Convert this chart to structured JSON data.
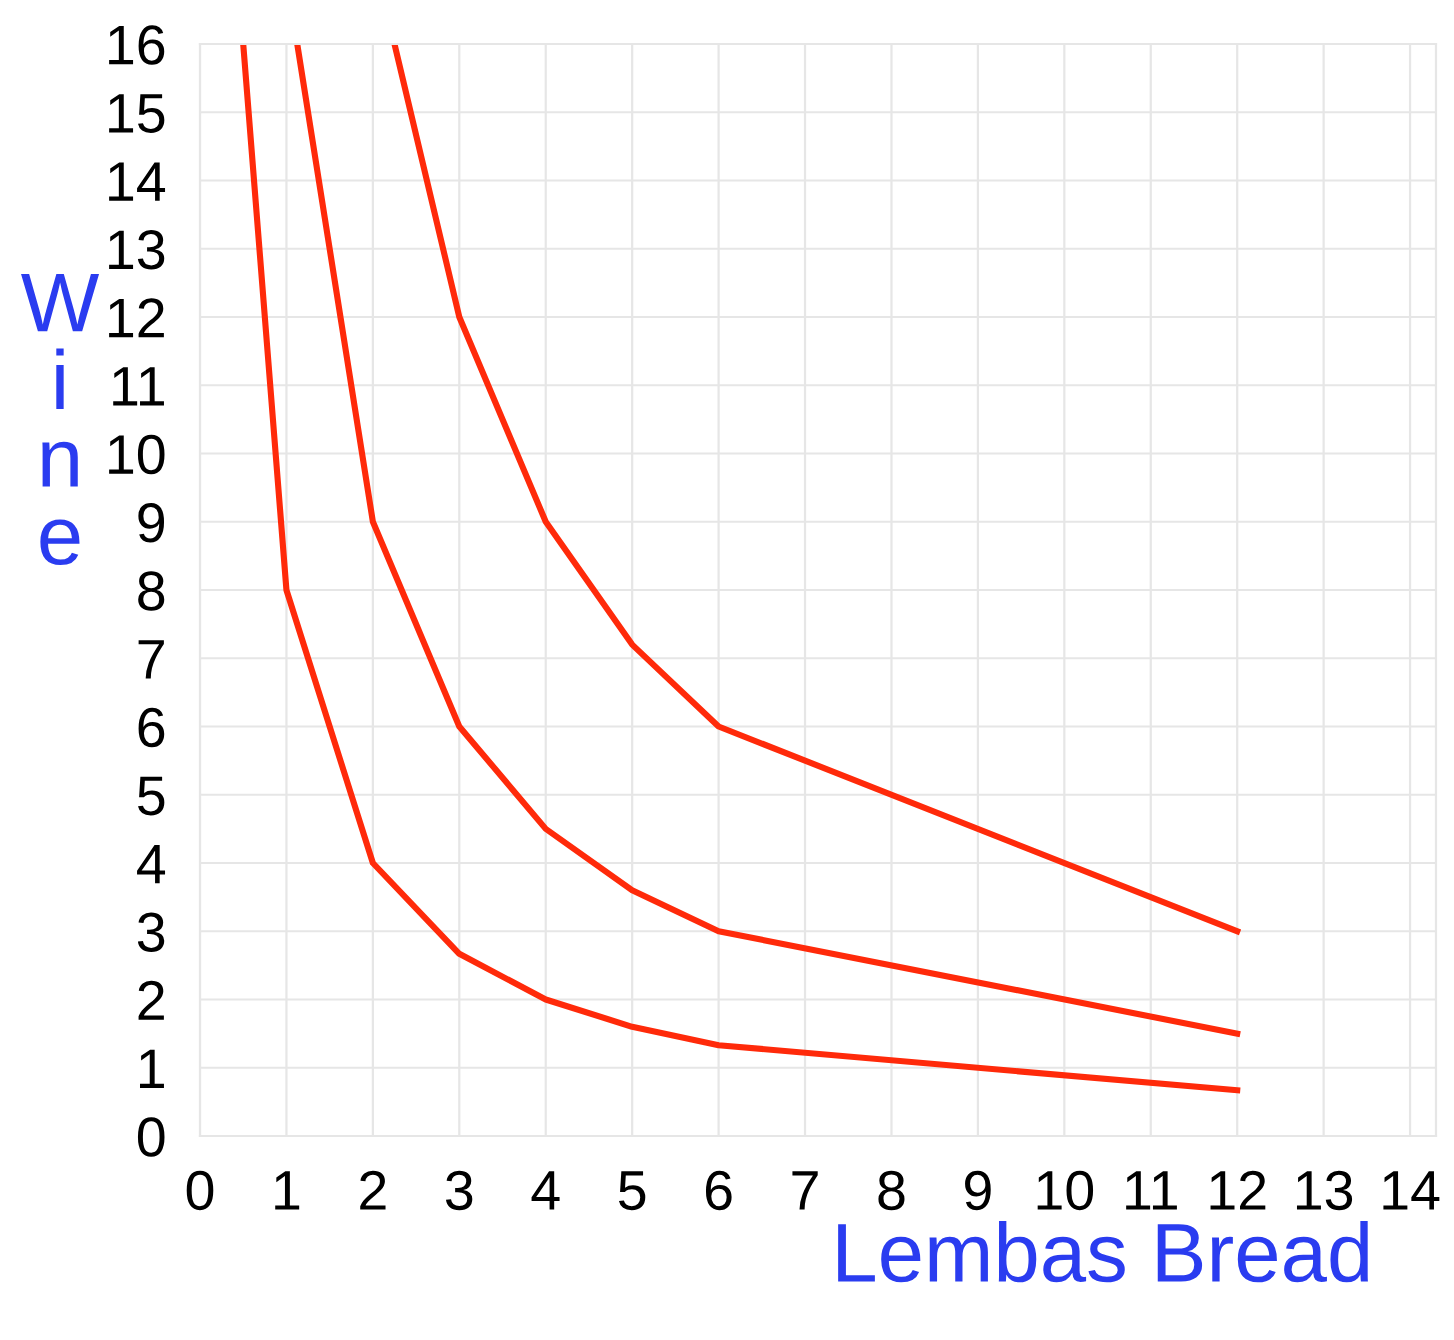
{
  "chart_data": {
    "type": "line",
    "xlabel": "Lembas Bread",
    "ylabel": "Wine",
    "xlim": [
      0,
      14.3
    ],
    "ylim": [
      0,
      16
    ],
    "xticks": [
      0,
      1,
      2,
      3,
      4,
      5,
      6,
      7,
      8,
      9,
      10,
      11,
      12,
      13,
      14
    ],
    "yticks": [
      0,
      1,
      2,
      3,
      4,
      5,
      6,
      7,
      8,
      9,
      10,
      11,
      12,
      13,
      14,
      15,
      16
    ],
    "grid": true,
    "marker": "none",
    "line_style": "solid",
    "series": [
      {
        "color": "#ff2a0a",
        "x": [
          0.5,
          1,
          2,
          3,
          4,
          5,
          6,
          12
        ],
        "values": [
          16,
          8,
          4,
          2.67,
          2,
          1.6,
          1.33,
          0.67
        ]
      },
      {
        "color": "#ff2a0a",
        "x": [
          1.125,
          2,
          3,
          4,
          5,
          6,
          12
        ],
        "values": [
          16,
          9,
          6,
          4.5,
          3.6,
          3,
          1.5
        ]
      },
      {
        "color": "#ff2a0a",
        "x": [
          2.25,
          3,
          4,
          5,
          6,
          12
        ],
        "values": [
          16,
          12,
          9,
          7.2,
          6,
          3
        ]
      }
    ]
  }
}
